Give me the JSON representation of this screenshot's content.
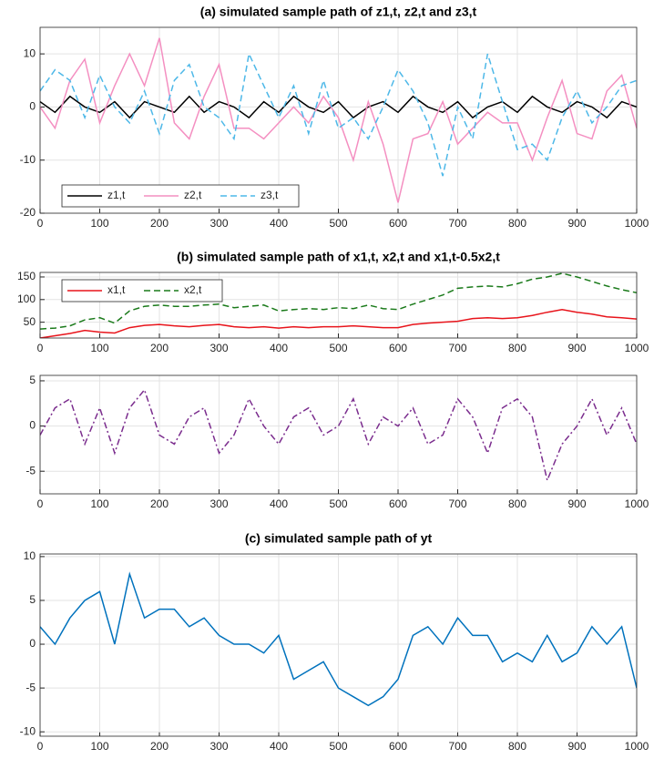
{
  "chart_data": [
    {
      "type": "line",
      "title": "(a) simulated sample path of z1,t, z2,t and z3,t",
      "x": [
        0,
        25,
        50,
        75,
        100,
        125,
        150,
        175,
        200,
        225,
        250,
        275,
        300,
        325,
        350,
        375,
        400,
        425,
        450,
        475,
        500,
        525,
        550,
        575,
        600,
        625,
        650,
        675,
        700,
        725,
        750,
        775,
        800,
        825,
        850,
        875,
        900,
        925,
        950,
        975,
        1000
      ],
      "series": [
        {
          "name": "z1,t",
          "color": "#000000",
          "style": "solid",
          "values": [
            1,
            -1,
            2,
            0,
            -1,
            1,
            -2,
            1,
            0,
            -1,
            2,
            -1,
            1,
            0,
            -2,
            1,
            -1,
            2,
            0,
            -1,
            1,
            -2,
            0,
            1,
            -1,
            2,
            0,
            -1,
            1,
            -2,
            0,
            1,
            -1,
            2,
            0,
            -1,
            1,
            0,
            -2,
            1,
            0
          ]
        },
        {
          "name": "z2,t",
          "color": "#f48fc1",
          "style": "solid",
          "values": [
            0,
            -4,
            5,
            9,
            -3,
            4,
            10,
            4,
            13,
            -3,
            -6,
            2,
            8,
            -4,
            -4,
            -6,
            -3,
            0,
            -3,
            2,
            -2,
            -10,
            1,
            -7,
            -18,
            -6,
            -5,
            1,
            -7,
            -4,
            -1,
            -3,
            -3,
            -10,
            -2,
            5,
            -5,
            -6,
            3,
            6,
            -4
          ]
        },
        {
          "name": "z3,t",
          "color": "#4db8e8",
          "style": "dashed",
          "values": [
            3,
            7,
            5,
            -2,
            6,
            0,
            -3,
            3,
            -5,
            5,
            8,
            0,
            -2,
            -6,
            10,
            4,
            -2,
            4,
            -5,
            5,
            -4,
            -2,
            -6,
            0,
            7,
            3,
            -3,
            -13,
            0,
            -6,
            10,
            1,
            -8,
            -7,
            -10,
            -2,
            3,
            -3,
            0,
            4,
            5
          ]
        }
      ],
      "xlim": [
        0,
        1000
      ],
      "xticks": [
        0,
        100,
        200,
        300,
        400,
        500,
        600,
        700,
        800,
        900,
        1000
      ],
      "ylim": [
        -20,
        15
      ],
      "yticks": [
        -20,
        -10,
        0,
        10
      ],
      "grid": true,
      "legend": "lower left"
    },
    {
      "type": "line",
      "title": "(b) simulated sample path of x1,t, x2,t and x1,t-0.5x2,t",
      "x": [
        0,
        25,
        50,
        75,
        100,
        125,
        150,
        175,
        200,
        225,
        250,
        275,
        300,
        325,
        350,
        375,
        400,
        425,
        450,
        475,
        500,
        525,
        550,
        575,
        600,
        625,
        650,
        675,
        700,
        725,
        750,
        775,
        800,
        825,
        850,
        875,
        900,
        925,
        950,
        975,
        1000
      ],
      "series": [
        {
          "name": "x1,t",
          "color": "#e8141b",
          "style": "solid",
          "values": [
            15,
            20,
            25,
            32,
            28,
            26,
            38,
            43,
            45,
            42,
            40,
            43,
            45,
            40,
            38,
            40,
            37,
            40,
            38,
            40,
            40,
            42,
            40,
            38,
            38,
            45,
            48,
            50,
            52,
            58,
            60,
            58,
            60,
            65,
            72,
            78,
            72,
            68,
            62,
            60,
            57
          ]
        },
        {
          "name": "x2,t",
          "color": "#1a7a1a",
          "style": "dashed",
          "values": [
            35,
            37,
            42,
            55,
            60,
            48,
            75,
            85,
            88,
            85,
            85,
            88,
            90,
            82,
            85,
            88,
            75,
            78,
            80,
            78,
            82,
            80,
            88,
            80,
            78,
            90,
            100,
            110,
            125,
            128,
            130,
            128,
            135,
            145,
            150,
            158,
            150,
            140,
            130,
            122,
            115
          ]
        }
      ],
      "xlim": [
        0,
        1000
      ],
      "xticks": [
        0,
        100,
        200,
        300,
        400,
        500,
        600,
        700,
        800,
        900,
        1000
      ],
      "ylim": [
        15,
        160
      ],
      "yticks": [
        50,
        100,
        150
      ],
      "grid": true,
      "legend": "upper left"
    },
    {
      "type": "line",
      "x": [
        0,
        25,
        50,
        75,
        100,
        125,
        150,
        175,
        200,
        225,
        250,
        275,
        300,
        325,
        350,
        375,
        400,
        425,
        450,
        475,
        500,
        525,
        550,
        575,
        600,
        625,
        650,
        675,
        700,
        725,
        750,
        775,
        800,
        825,
        850,
        875,
        900,
        925,
        950,
        975,
        1000
      ],
      "series": [
        {
          "color": "#7b2d8e",
          "style": "dashdot",
          "values": [
            -1,
            2,
            3,
            -2,
            2,
            -3,
            2,
            4,
            -1,
            -2,
            1,
            2,
            -3,
            -1,
            3,
            0,
            -2,
            1,
            2,
            -1,
            0,
            3,
            -2,
            1,
            0,
            2,
            -2,
            -1,
            3,
            1,
            -3,
            2,
            3,
            1,
            -6,
            -2,
            0,
            3,
            -1,
            2,
            -2
          ]
        }
      ],
      "xlim": [
        0,
        1000
      ],
      "xticks": [
        0,
        100,
        200,
        300,
        400,
        500,
        600,
        700,
        800,
        900,
        1000
      ],
      "ylim": [
        -7.5,
        5.6
      ],
      "yticks": [
        -5,
        0,
        5
      ],
      "grid": true
    },
    {
      "type": "line",
      "title": "(c) simulated sample path of yt",
      "x": [
        0,
        25,
        50,
        75,
        100,
        125,
        150,
        175,
        200,
        225,
        250,
        275,
        300,
        325,
        350,
        375,
        400,
        425,
        450,
        475,
        500,
        525,
        550,
        575,
        600,
        625,
        650,
        675,
        700,
        725,
        750,
        775,
        800,
        825,
        850,
        875,
        900,
        925,
        950,
        975,
        1000
      ],
      "series": [
        {
          "color": "#0072bd",
          "style": "solid",
          "values": [
            2,
            0,
            3,
            5,
            6,
            0,
            8,
            3,
            4,
            4,
            2,
            3,
            1,
            0,
            0,
            -1,
            1,
            -4,
            -3,
            -2,
            -5,
            -6,
            -7,
            -6,
            -4,
            1,
            2,
            0,
            3,
            1,
            1,
            -2,
            -1,
            -2,
            1,
            -2,
            -1,
            2,
            0,
            2,
            -5
          ]
        }
      ],
      "xlim": [
        0,
        1000
      ],
      "xticks": [
        0,
        100,
        200,
        300,
        400,
        500,
        600,
        700,
        800,
        900,
        1000
      ],
      "ylim": [
        -10.5,
        10.3
      ],
      "yticks": [
        -10,
        -5,
        0,
        5,
        10
      ],
      "grid": true
    }
  ]
}
